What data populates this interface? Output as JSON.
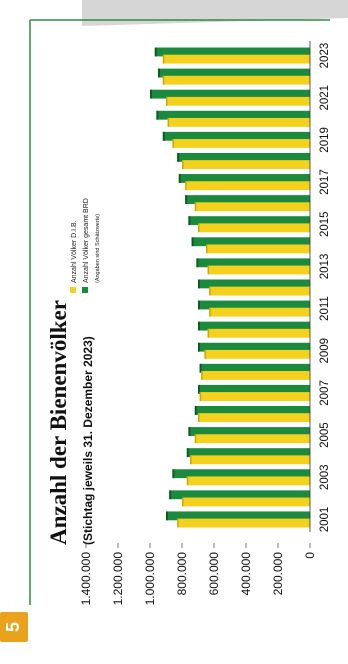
{
  "page_number": "5",
  "colors": {
    "dib": "#f3d11c",
    "brd": "#1b8a3c",
    "frame": "#2e8b4a",
    "badge": "#e8a21c",
    "band": "#d6d6d6"
  },
  "chart_data": {
    "type": "bar",
    "title": "Anzahl der Bienenvölker",
    "subtitle": "(Stichtag jeweils 31. Dezember 2023)",
    "categories": [
      "2001",
      "2002",
      "2003",
      "2004",
      "2005",
      "2006",
      "2007",
      "2008",
      "2009",
      "2010",
      "2011",
      "2012",
      "2013",
      "2014",
      "2015",
      "2016",
      "2017",
      "2018",
      "2019",
      "2020",
      "2021",
      "2022",
      "2023"
    ],
    "category_labels": [
      "2001",
      "",
      "2003",
      "",
      "2005",
      "",
      "2007",
      "",
      "2009",
      "",
      "2011",
      "",
      "2013",
      "",
      "2015",
      "",
      "2017",
      "",
      "2019",
      "",
      "2021",
      "",
      "2023"
    ],
    "series": [
      {
        "name": "Anzahl Völker D.I.B.",
        "color": "#f3d11c",
        "values": [
          830000,
          800000,
          770000,
          750000,
          720000,
          700000,
          690000,
          680000,
          660000,
          640000,
          630000,
          630000,
          640000,
          650000,
          700000,
          720000,
          780000,
          800000,
          860000,
          890000,
          900000,
          920000,
          920000
        ]
      },
      {
        "name": "Anzahl Völker gesamt BRD",
        "color": "#1b8a3c",
        "values": [
          900000,
          880000,
          860000,
          770000,
          760000,
          720000,
          700000,
          690000,
          700000,
          700000,
          700000,
          700000,
          710000,
          740000,
          760000,
          780000,
          820000,
          830000,
          920000,
          960000,
          1000000,
          950000,
          970000
        ]
      }
    ],
    "legend_note": "(Angaben sind Schätzwerte)",
    "value_ticks": [
      "0",
      "200.000",
      "400.000",
      "600.000",
      "800.000",
      "1.000.000",
      "1.200.000",
      "1.400.000"
    ],
    "ylim": [
      0,
      1400000
    ],
    "orientation": "rotated",
    "legend_position": "top"
  }
}
